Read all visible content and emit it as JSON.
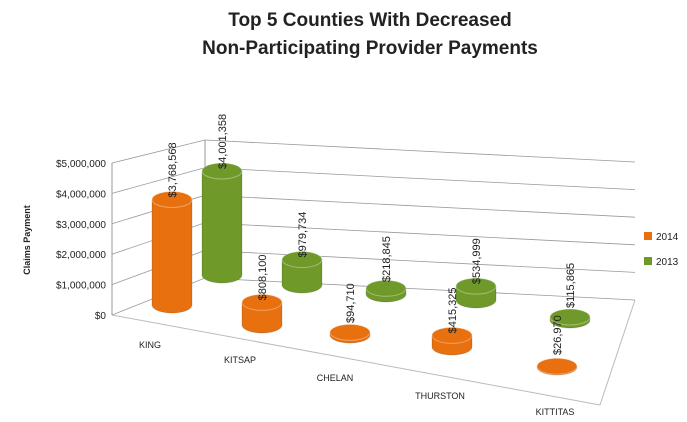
{
  "chart_data": {
    "type": "bar3d",
    "title": [
      "Top 5 Counties With Decreased",
      "Non-Participating Provider Payments"
    ],
    "y_label": "Claims Payment",
    "categories": [
      "KING",
      "KITSAP",
      "CHELAN",
      "THURSTON",
      "KITTITAS"
    ],
    "series": [
      {
        "name": "2014",
        "color": "#e8700f",
        "values": [
          3768568,
          808100,
          94710,
          415325,
          26970
        ],
        "value_labels": [
          "$3,768,568",
          "$808,100",
          "$94,710",
          "$415,325",
          "$26,970"
        ]
      },
      {
        "name": "2013",
        "color": "#6f9a2a",
        "values": [
          4001358,
          979734,
          218845,
          534999,
          115865
        ],
        "value_labels": [
          "$4,001,358",
          "$979,734",
          "$218,845",
          "$534,999",
          "$115,865"
        ]
      }
    ],
    "ylim": [
      0,
      5000000
    ],
    "yticks": [
      {
        "value": 0,
        "label": "$0"
      },
      {
        "value": 1000000,
        "label": "$1,000,000"
      },
      {
        "value": 2000000,
        "label": "$2,000,000"
      },
      {
        "value": 3000000,
        "label": "$3,000,000"
      },
      {
        "value": 4000000,
        "label": "$4,000,000"
      },
      {
        "value": 5000000,
        "label": "$5,000,000"
      }
    ],
    "grid": true,
    "legend": "right"
  }
}
